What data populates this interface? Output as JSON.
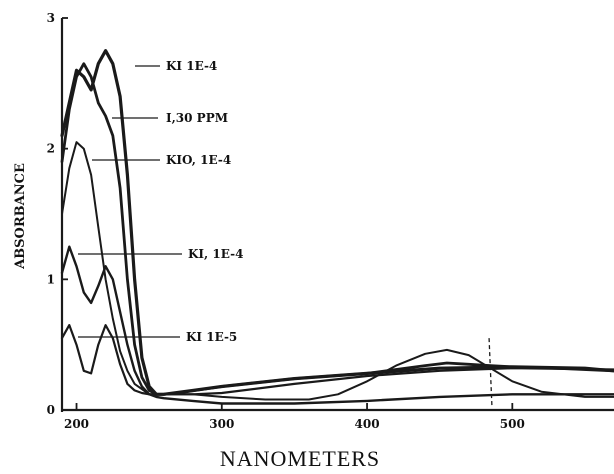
{
  "chart_data": {
    "type": "line",
    "title": "",
    "xlabel": "NANOMETERS",
    "ylabel": "ABSORBANCE",
    "xlim": [
      190,
      570
    ],
    "ylim": [
      0,
      3
    ],
    "x_ticks": [
      200,
      300,
      400,
      500
    ],
    "y_ticks": [
      0,
      1,
      2,
      3
    ],
    "grid": false,
    "annotations": [
      "KI 1E-4",
      "I,30 PPM",
      "KIO, 1E-4",
      "KI, 1E-4",
      "KI 1E-5"
    ],
    "series": [
      {
        "name": "KI 1E-4",
        "x": [
          190,
          200,
          205,
          210,
          215,
          220,
          225,
          230,
          235,
          240,
          245,
          250,
          255,
          260,
          280,
          300,
          350,
          400,
          450,
          500,
          550,
          570
        ],
        "y": [
          2.1,
          2.6,
          2.55,
          2.45,
          2.65,
          2.75,
          2.65,
          2.4,
          1.8,
          1.0,
          0.4,
          0.18,
          0.12,
          0.12,
          0.15,
          0.18,
          0.24,
          0.28,
          0.32,
          0.33,
          0.32,
          0.3
        ]
      },
      {
        "name": "I,30 PPM",
        "x": [
          190,
          195,
          200,
          205,
          210,
          215,
          220,
          225,
          230,
          235,
          240,
          245,
          250,
          255,
          260,
          270,
          300,
          350,
          400,
          420,
          440,
          455,
          470,
          485,
          500,
          530,
          570
        ],
        "y": [
          1.9,
          2.3,
          2.55,
          2.65,
          2.55,
          2.35,
          2.25,
          2.1,
          1.7,
          1.0,
          0.5,
          0.25,
          0.15,
          0.12,
          0.12,
          0.13,
          0.18,
          0.24,
          0.28,
          0.31,
          0.34,
          0.36,
          0.35,
          0.34,
          0.33,
          0.32,
          0.3
        ]
      },
      {
        "name": "KIO, 1E-4",
        "x": [
          190,
          195,
          200,
          205,
          210,
          215,
          220,
          225,
          230,
          235,
          240,
          250,
          260,
          280,
          300,
          330,
          360,
          380,
          400,
          420,
          440,
          455,
          470,
          485,
          500,
          520,
          550,
          570
        ],
        "y": [
          1.5,
          1.85,
          2.05,
          2.0,
          1.8,
          1.4,
          1.0,
          0.7,
          0.45,
          0.3,
          0.2,
          0.12,
          0.12,
          0.12,
          0.1,
          0.08,
          0.08,
          0.12,
          0.22,
          0.34,
          0.43,
          0.46,
          0.42,
          0.32,
          0.22,
          0.14,
          0.1,
          0.1
        ]
      },
      {
        "name": "KI, 1E-4",
        "x": [
          190,
          195,
          200,
          205,
          210,
          215,
          220,
          225,
          230,
          235,
          240,
          245,
          250,
          255,
          260,
          280,
          300,
          350,
          400,
          450,
          500,
          570
        ],
        "y": [
          1.05,
          1.25,
          1.1,
          0.9,
          0.82,
          0.95,
          1.1,
          1.0,
          0.75,
          0.5,
          0.3,
          0.18,
          0.12,
          0.1,
          0.09,
          0.07,
          0.05,
          0.05,
          0.07,
          0.1,
          0.12,
          0.12
        ]
      },
      {
        "name": "KI 1E-5",
        "x": [
          190,
          195,
          200,
          205,
          210,
          215,
          220,
          225,
          230,
          235,
          240,
          245,
          250,
          255,
          260,
          280,
          300,
          350,
          400,
          450,
          500,
          570
        ],
        "y": [
          0.55,
          0.65,
          0.5,
          0.3,
          0.28,
          0.5,
          0.65,
          0.55,
          0.35,
          0.2,
          0.15,
          0.13,
          0.12,
          0.12,
          0.12,
          0.12,
          0.13,
          0.2,
          0.26,
          0.3,
          0.32,
          0.31
        ]
      }
    ]
  }
}
